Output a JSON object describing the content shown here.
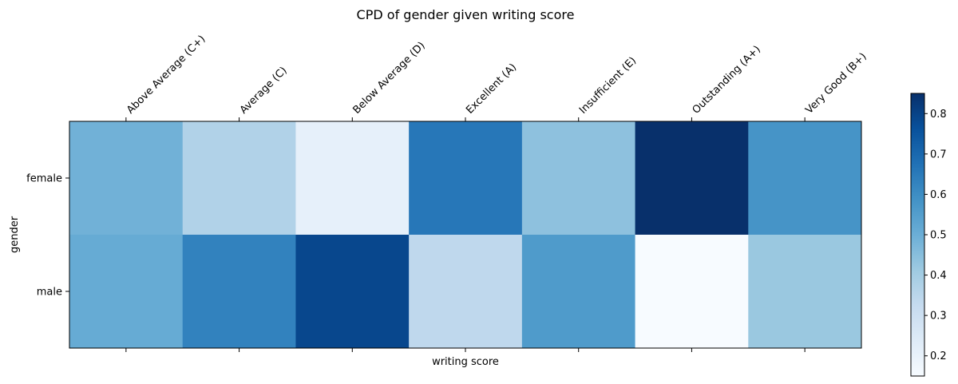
{
  "chart_data": {
    "type": "heatmap",
    "title": "CPD of gender given writing score",
    "xlabel": "writing score",
    "ylabel": "gender",
    "x_categories": [
      "Above Average (C+)",
      "Average (C)",
      "Below Average (D)",
      "Excellent (A)",
      "Insufficient (E)",
      "Outstanding (A+)",
      "Very Good (B+)"
    ],
    "y_categories": [
      "female",
      "male"
    ],
    "values": [
      [
        0.49,
        0.37,
        0.21,
        0.66,
        0.44,
        0.85,
        0.58
      ],
      [
        0.51,
        0.63,
        0.79,
        0.34,
        0.56,
        0.15,
        0.42
      ]
    ],
    "colormap": "Blues",
    "vmin": 0.15,
    "vmax": 0.85,
    "colorbar_ticks": [
      0.2,
      0.3,
      0.4,
      0.5,
      0.6,
      0.7,
      0.8
    ],
    "x_tick_position": "top",
    "grid": false
  }
}
